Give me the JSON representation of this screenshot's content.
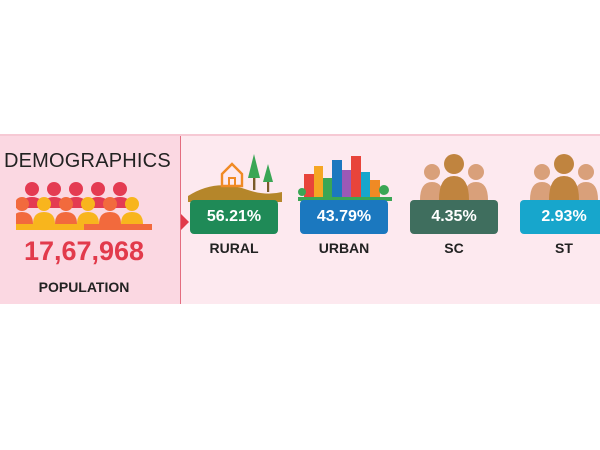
{
  "demographics": {
    "title": "DEMOGRAPHICS",
    "population_value": "17,67,968",
    "population_label": "POPULATION",
    "icon": "crowd-icon"
  },
  "stats": [
    {
      "value": "56.21%",
      "label": "RURAL",
      "color": "#1f8a57",
      "icon": "rural-landscape-icon"
    },
    {
      "value": "43.79%",
      "label": "URBAN",
      "color": "#1b78bf",
      "icon": "city-buildings-icon"
    },
    {
      "value": "4.35%",
      "label": "SC",
      "color": "#3f6e5e",
      "icon": "people-group-icon"
    },
    {
      "value": "2.93%",
      "label": "ST",
      "color": "#17a6cc",
      "icon": "people-group-icon"
    }
  ],
  "colors": {
    "accent": "#e23a4b",
    "strip_bg": "#fde9ef",
    "panel_bg": "#fbd8e2"
  }
}
